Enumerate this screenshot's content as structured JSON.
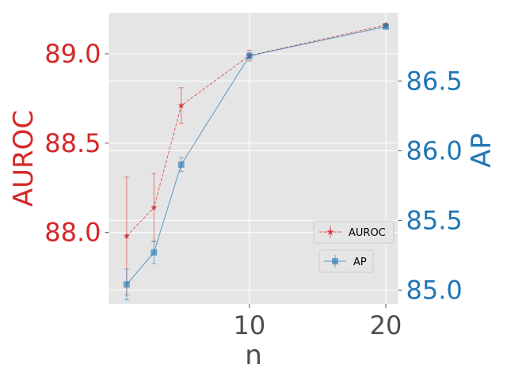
{
  "chart_data": {
    "type": "line",
    "xlabel": "n",
    "ylabel_left": "AUROC",
    "ylabel_right": "AP",
    "x": [
      1,
      3,
      5,
      10,
      20
    ],
    "x_ticks": [
      10,
      20
    ],
    "x_tick_labels": [
      "10",
      "20"
    ],
    "xlim": [
      -0.3,
      20.9
    ],
    "left_axis": {
      "ylim": [
        87.6,
        89.23
      ],
      "ticks": [
        88.0,
        88.5,
        89.0
      ],
      "tick_labels": [
        "88.0",
        "88.5",
        "89.0"
      ]
    },
    "right_axis": {
      "ylim": [
        84.9,
        86.99
      ],
      "ticks": [
        85.0,
        85.5,
        86.0,
        86.5
      ],
      "tick_labels": [
        "85.0",
        "85.5",
        "86.0",
        "86.5"
      ]
    },
    "series": [
      {
        "name": "AUROC",
        "axis": "left",
        "values": [
          87.98,
          88.14,
          88.71,
          88.99,
          89.16
        ],
        "errors": [
          0.33,
          0.19,
          0.1,
          0.03,
          0.01
        ],
        "color": "#d62728",
        "marker": "star",
        "linestyle": "dashed"
      },
      {
        "name": "AP",
        "axis": "right",
        "values": [
          85.04,
          85.27,
          85.9,
          86.68,
          86.89
        ],
        "errors": [
          0.11,
          0.08,
          0.05,
          0.02,
          0.01
        ],
        "color": "#1f77b4",
        "marker": "square",
        "linestyle": "solid"
      }
    ],
    "grid": true,
    "legend": [
      "lower right",
      "lower right"
    ]
  }
}
